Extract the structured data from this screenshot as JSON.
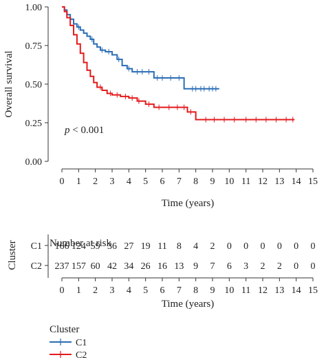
{
  "colors": {
    "C1": "#2a6db5",
    "C2": "#e31a1c",
    "axis": "#333333"
  },
  "chart_data": {
    "type": "line",
    "subtype": "kaplan-meier",
    "ylabel": "Overall survival",
    "xlabel": "Time (years)",
    "annotation": {
      "prefix": "p",
      "text": " < 0.001"
    },
    "xlim": [
      0,
      15
    ],
    "ylim": [
      0,
      1
    ],
    "x_ticks": [
      "0",
      "1",
      "2",
      "3",
      "4",
      "5",
      "6",
      "7",
      "8",
      "9",
      "10",
      "11",
      "12",
      "13",
      "14",
      "15"
    ],
    "y_ticks": [
      "0.00",
      "0.25",
      "0.50",
      "0.75",
      "1.00"
    ],
    "series": [
      {
        "name": "C1",
        "color": "#2a6db5",
        "x": [
          0,
          0.15,
          0.3,
          0.5,
          0.7,
          0.9,
          1.1,
          1.3,
          1.5,
          1.7,
          1.9,
          2.1,
          2.3,
          2.6,
          3.0,
          3.3,
          3.6,
          3.9,
          4.2,
          5.5,
          7.3,
          9.4
        ],
        "y": [
          1.0,
          0.98,
          0.95,
          0.92,
          0.89,
          0.87,
          0.85,
          0.83,
          0.81,
          0.79,
          0.76,
          0.74,
          0.72,
          0.71,
          0.69,
          0.66,
          0.62,
          0.6,
          0.58,
          0.54,
          0.47,
          0.47
        ],
        "censor_x": [
          1.0,
          1.8,
          2.4,
          2.8,
          3.4,
          4.0,
          4.5,
          4.8,
          5.2,
          5.7,
          6.0,
          6.5,
          7.0,
          7.8,
          8.0,
          8.3,
          8.5,
          8.8,
          9.0,
          9.2
        ]
      },
      {
        "name": "C2",
        "color": "#e31a1c",
        "x": [
          0,
          0.15,
          0.3,
          0.5,
          0.7,
          0.9,
          1.1,
          1.3,
          1.5,
          1.7,
          1.9,
          2.1,
          2.4,
          2.7,
          3.0,
          3.5,
          4.0,
          4.5,
          5.0,
          5.5,
          6.0,
          7.5,
          8.0,
          13.9
        ],
        "y": [
          1.0,
          0.97,
          0.93,
          0.88,
          0.82,
          0.76,
          0.7,
          0.64,
          0.59,
          0.55,
          0.51,
          0.48,
          0.46,
          0.44,
          0.43,
          0.42,
          0.41,
          0.39,
          0.37,
          0.35,
          0.35,
          0.32,
          0.27,
          0.27
        ],
        "censor_x": [
          2.3,
          2.9,
          3.3,
          3.8,
          4.2,
          4.6,
          5.2,
          5.8,
          6.4,
          6.9,
          7.3,
          7.7,
          8.6,
          9.1,
          9.7,
          10.3,
          11.0,
          11.6,
          12.2,
          12.8,
          13.4,
          13.8
        ]
      }
    ],
    "risk_table": {
      "title": "Number at risk",
      "group_label": "Cluster",
      "xlabel": "Time (years)",
      "rows": [
        {
          "label": "C1",
          "values": [
            "166",
            "124",
            "59",
            "36",
            "27",
            "19",
            "11",
            "8",
            "4",
            "2",
            "0",
            "0",
            "0",
            "0",
            "0",
            "0"
          ]
        },
        {
          "label": "C2",
          "values": [
            "237",
            "157",
            "60",
            "42",
            "34",
            "26",
            "16",
            "13",
            "9",
            "7",
            "6",
            "3",
            "2",
            "2",
            "0",
            "0"
          ]
        }
      ]
    },
    "legend": {
      "title": "Cluster",
      "position": "bottom-left",
      "items": [
        "C1",
        "C2"
      ]
    }
  }
}
